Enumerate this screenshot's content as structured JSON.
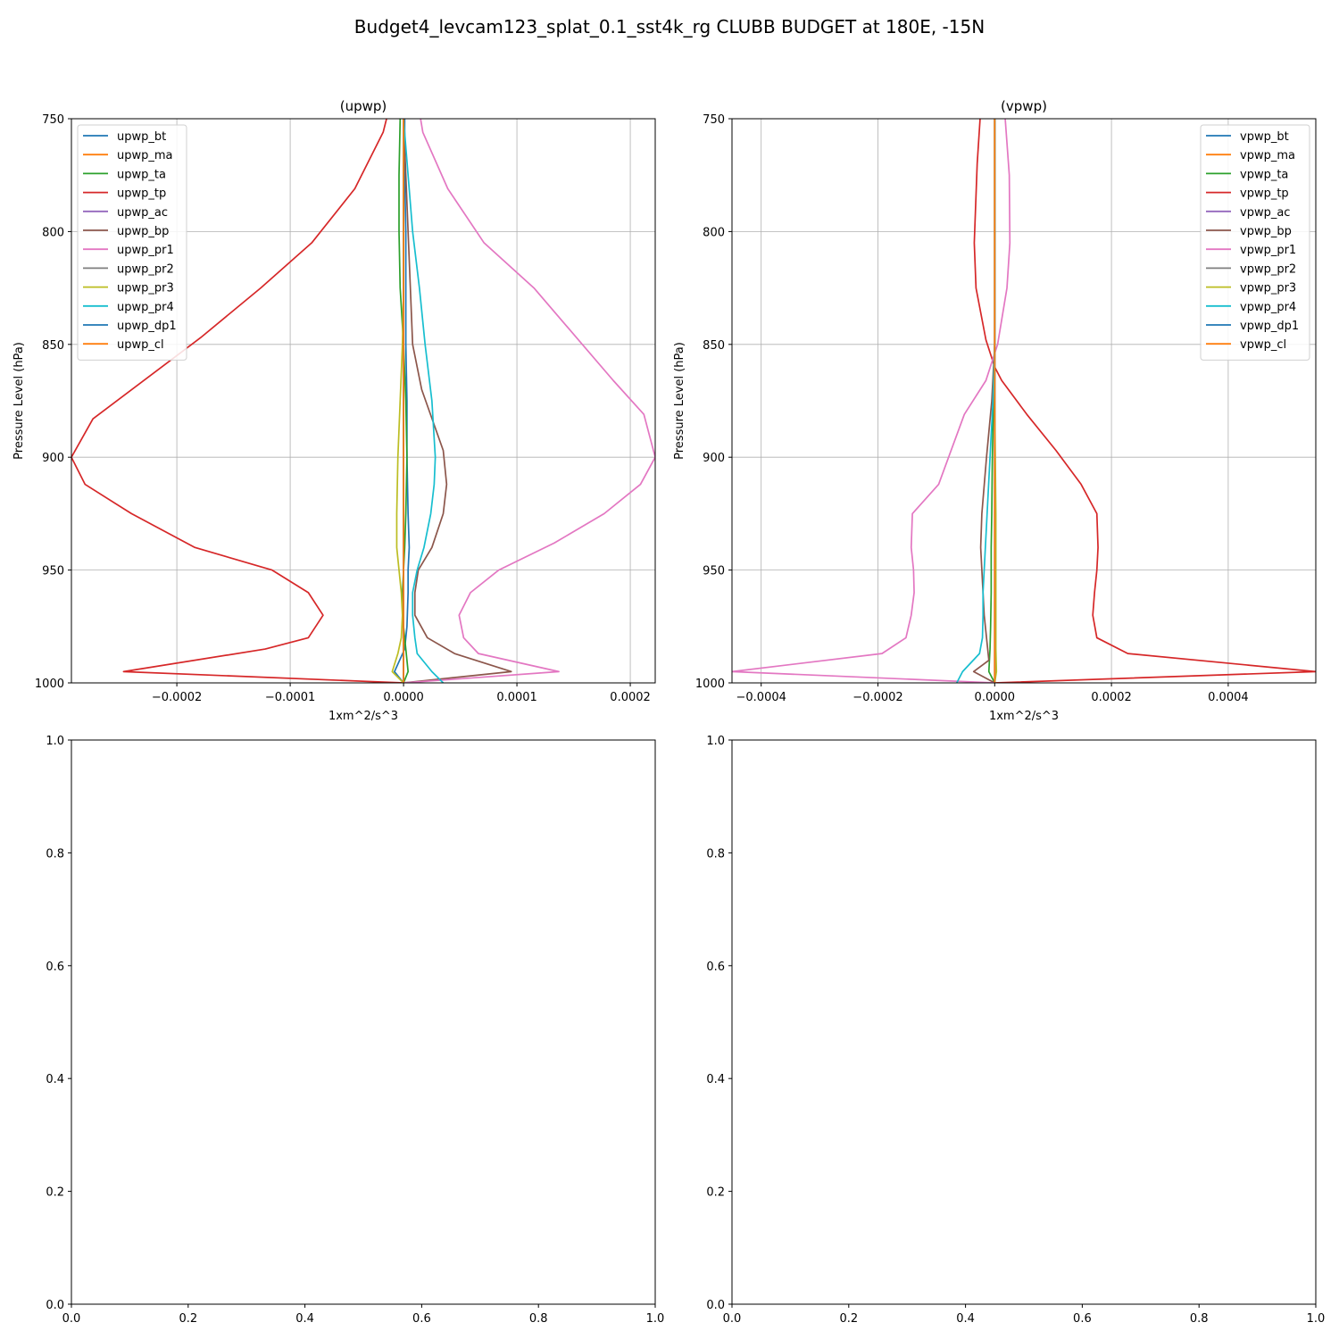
{
  "figure_title": "Budget4_levcam123_splat_0.1_sst4k_rg CLUBB BUDGET at 180E, -15N",
  "chart_data": [
    {
      "type": "line",
      "title": "(upwp)",
      "xlabel": "1xm^2/s^3",
      "ylabel": "Pressure Level (hPa)",
      "xlim": [
        -0.000293,
        0.000222
      ],
      "ylim": [
        1000,
        750
      ],
      "xticks": [
        -0.0002,
        -0.0001,
        0.0,
        0.0001,
        0.0002
      ],
      "xtick_labels": [
        "−0.0002",
        "−0.0001",
        "0.0000",
        "0.0001",
        "0.0002"
      ],
      "yticks": [
        750,
        800,
        850,
        900,
        950,
        1000
      ],
      "ytick_labels": [
        "750",
        "800",
        "850",
        "900",
        "950",
        "1000"
      ],
      "grid": true,
      "legend_position": "upper-left",
      "series": [
        {
          "name": "upwp_bt",
          "color": "#1f77b4",
          "x": [
            1e-06,
            1e-06,
            2e-06,
            2e-06,
            2e-06,
            3e-06,
            3e-06,
            4e-06,
            5e-06,
            4e-06,
            4e-06,
            3e-06,
            1e-06,
            -8e-06,
            0.0
          ],
          "y": [
            750,
            775,
            800,
            825,
            850,
            875,
            900,
            925,
            940,
            950,
            960,
            975,
            985,
            995,
            1000
          ]
        },
        {
          "name": "upwp_ma",
          "color": "#ff7f0e",
          "x": [
            0.0,
            0.0,
            0.0,
            0.0,
            0.0,
            0.0,
            0.0,
            0.0,
            0.0,
            0.0,
            0.0,
            0.0,
            0.0,
            0.0,
            0.0
          ],
          "y": [
            750,
            775,
            800,
            825,
            850,
            875,
            900,
            925,
            940,
            950,
            960,
            975,
            985,
            995,
            1000
          ]
        },
        {
          "name": "upwp_ta",
          "color": "#2ca02c",
          "x": [
            -3e-06,
            -4e-06,
            -4e-06,
            -3e-06,
            0.0,
            2e-06,
            3e-06,
            2e-06,
            1e-06,
            0.0,
            -1e-06,
            0.0,
            2e-06,
            4e-06,
            0.0
          ],
          "y": [
            750,
            775,
            800,
            825,
            850,
            875,
            900,
            925,
            940,
            950,
            960,
            975,
            985,
            995,
            1000
          ]
        },
        {
          "name": "upwp_tp",
          "color": "#d62728",
          "x": [
            -1.5e-05,
            -1.8e-05,
            -4.3e-05,
            -8.1e-05,
            -0.000126,
            -0.000179,
            -0.000274,
            -0.000293,
            -0.000281,
            -0.00024,
            -0.000184,
            -0.000116,
            -8.4e-05,
            -7.1e-05,
            -8.4e-05,
            -0.000122,
            -0.000247,
            0.0
          ],
          "y": [
            750,
            756,
            781,
            805,
            825,
            847,
            883,
            900,
            912,
            925,
            940,
            950,
            960,
            970,
            980,
            985,
            995,
            1000
          ]
        },
        {
          "name": "upwp_ac",
          "color": "#9467bd",
          "x": [
            0.0,
            0.0,
            0.0,
            0.0,
            0.0,
            0.0,
            0.0,
            0.0,
            0.0,
            0.0,
            0.0,
            0.0,
            0.0,
            0.0,
            0.0
          ],
          "y": [
            750,
            775,
            800,
            825,
            850,
            875,
            900,
            925,
            940,
            950,
            960,
            975,
            985,
            995,
            1000
          ]
        },
        {
          "name": "upwp_bp",
          "color": "#8c564b",
          "x": [
            0.0,
            2e-06,
            4e-06,
            6e-06,
            8e-06,
            1.6e-05,
            3.5e-05,
            3.8e-05,
            3.5e-05,
            2.5e-05,
            1.3e-05,
            1e-05,
            1e-05,
            2.1e-05,
            4.5e-05,
            9.5e-05,
            0.0
          ],
          "y": [
            750,
            775,
            800,
            825,
            850,
            870,
            897,
            912,
            925,
            940,
            950,
            960,
            970,
            980,
            987,
            995,
            1000
          ]
        },
        {
          "name": "upwp_pr1",
          "color": "#e377c2",
          "x": [
            1.5e-05,
            1.7e-05,
            3.9e-05,
            7.1e-05,
            0.000115,
            0.000185,
            0.000212,
            0.000222,
            0.000209,
            0.000177,
            0.000133,
            8.4e-05,
            5.9e-05,
            4.9e-05,
            5.3e-05,
            6.6e-05,
            0.000137,
            0.0
          ],
          "y": [
            750,
            756,
            781,
            805,
            825,
            866,
            881,
            900,
            912,
            925,
            938,
            950,
            960,
            970,
            980,
            987,
            995,
            1000
          ]
        },
        {
          "name": "upwp_pr2",
          "color": "#7f7f7f",
          "x": [
            0.0,
            0.0,
            0.0,
            0.0,
            0.0,
            0.0,
            0.0,
            0.0,
            0.0,
            0.0,
            0.0,
            0.0,
            0.0,
            0.0,
            0.0
          ],
          "y": [
            750,
            775,
            800,
            825,
            850,
            875,
            900,
            925,
            940,
            950,
            960,
            975,
            985,
            995,
            1000
          ]
        },
        {
          "name": "upwp_pr3",
          "color": "#bcbd22",
          "x": [
            0.0,
            0.0,
            0.0,
            0.0,
            -1e-06,
            -3e-06,
            -5e-06,
            -6e-06,
            -6e-06,
            -4e-06,
            -2e-06,
            -1e-06,
            -2e-06,
            -5e-06,
            -1e-05,
            0.0
          ],
          "y": [
            750,
            775,
            800,
            825,
            850,
            875,
            900,
            925,
            940,
            950,
            960,
            970,
            980,
            987,
            995,
            1000
          ]
        },
        {
          "name": "upwp_pr4",
          "color": "#17becf",
          "x": [
            0.0,
            4e-06,
            8e-06,
            1.4e-05,
            1.9e-05,
            2.5e-05,
            2.8e-05,
            2.7e-05,
            2.4e-05,
            1.8e-05,
            1.2e-05,
            8e-06,
            8e-06,
            1e-05,
            1.2e-05,
            2.5e-05,
            3.5e-05
          ],
          "y": [
            750,
            775,
            800,
            825,
            850,
            875,
            900,
            912,
            925,
            940,
            950,
            960,
            970,
            980,
            987,
            995,
            1000
          ]
        },
        {
          "name": "upwp_dp1",
          "color": "#1f77b4",
          "x": [
            0.0,
            0.0,
            0.0,
            0.0,
            0.0,
            0.0,
            0.0,
            0.0,
            0.0,
            0.0,
            0.0,
            0.0,
            0.0,
            0.0,
            0.0
          ],
          "y": [
            750,
            775,
            800,
            825,
            850,
            875,
            900,
            925,
            940,
            950,
            960,
            975,
            985,
            995,
            1000
          ]
        },
        {
          "name": "upwp_cl",
          "color": "#ff7f0e",
          "x": [
            0.0,
            0.0,
            0.0,
            0.0,
            0.0,
            0.0,
            0.0,
            0.0,
            0.0,
            0.0,
            0.0,
            0.0,
            0.0,
            0.0,
            0.0
          ],
          "y": [
            750,
            775,
            800,
            825,
            850,
            875,
            900,
            925,
            940,
            950,
            960,
            975,
            985,
            995,
            1000
          ]
        }
      ]
    },
    {
      "type": "line",
      "title": "(vpwp)",
      "xlabel": "1xm^2/s^3",
      "ylabel": "Pressure Level (hPa)",
      "xlim": [
        -0.00045,
        0.00055
      ],
      "ylim": [
        1000,
        750
      ],
      "xticks": [
        -0.0004,
        -0.0002,
        0.0,
        0.0002,
        0.0004
      ],
      "xtick_labels": [
        "−0.0004",
        "−0.0002",
        "0.0000",
        "0.0002",
        "0.0004"
      ],
      "yticks": [
        750,
        800,
        850,
        900,
        950,
        1000
      ],
      "ytick_labels": [
        "750",
        "800",
        "850",
        "900",
        "950",
        "1000"
      ],
      "grid": true,
      "legend_position": "upper-right",
      "series": [
        {
          "name": "vpwp_bt",
          "color": "#1f77b4",
          "x": [
            0.0,
            0.0,
            0.0,
            0.0,
            0.0,
            0.0,
            0.0,
            0.0,
            0.0,
            0.0,
            0.0,
            0.0,
            0.0,
            0.0,
            0.0
          ],
          "y": [
            750,
            775,
            800,
            825,
            850,
            875,
            900,
            925,
            940,
            950,
            960,
            975,
            985,
            995,
            1000
          ]
        },
        {
          "name": "vpwp_ma",
          "color": "#ff7f0e",
          "x": [
            0.0,
            0.0,
            0.0,
            0.0,
            0.0,
            0.0,
            0.0,
            0.0,
            0.0,
            0.0,
            0.0,
            0.0,
            0.0,
            0.0,
            0.0
          ],
          "y": [
            750,
            775,
            800,
            825,
            850,
            875,
            900,
            925,
            940,
            950,
            960,
            975,
            985,
            995,
            1000
          ]
        },
        {
          "name": "vpwp_ta",
          "color": "#2ca02c",
          "x": [
            0.0,
            0.0,
            0.0,
            0.0,
            0.0,
            -2e-06,
            -4e-06,
            -5e-06,
            -6e-06,
            -6e-06,
            -6e-06,
            -7e-06,
            -8e-06,
            -1e-05,
            0.0
          ],
          "y": [
            750,
            775,
            800,
            825,
            850,
            875,
            900,
            925,
            940,
            950,
            960,
            975,
            985,
            995,
            1000
          ]
        },
        {
          "name": "vpwp_tp",
          "color": "#d62728",
          "x": [
            -2.5e-05,
            -3e-05,
            -3.5e-05,
            -3.2e-05,
            -1.5e-05,
            0.0,
            1.2e-05,
            5.5e-05,
            0.000105,
            0.000148,
            0.000175,
            0.000177,
            0.000175,
            0.000171,
            0.000168,
            0.000175,
            0.000228,
            0.00055,
            0.0
          ],
          "y": [
            750,
            770,
            805,
            825,
            848,
            860,
            866,
            881,
            897,
            912,
            925,
            940,
            950,
            960,
            970,
            980,
            987,
            995,
            1000
          ]
        },
        {
          "name": "vpwp_ac",
          "color": "#9467bd",
          "x": [
            0.0,
            0.0,
            0.0,
            0.0,
            0.0,
            0.0,
            0.0,
            0.0,
            0.0,
            0.0,
            0.0,
            0.0,
            0.0,
            0.0,
            0.0
          ],
          "y": [
            750,
            775,
            800,
            825,
            850,
            875,
            900,
            925,
            940,
            950,
            960,
            975,
            985,
            995,
            1000
          ]
        },
        {
          "name": "vpwp_bp",
          "color": "#8c564b",
          "x": [
            0.0,
            0.0,
            0.0,
            0.0,
            0.0,
            -5e-06,
            -1.4e-05,
            -2.2e-05,
            -2.4e-05,
            -2.2e-05,
            -2e-05,
            -1.8e-05,
            -1.4e-05,
            -1.2e-05,
            -1e-05,
            -3.6e-05,
            0.0
          ],
          "y": [
            750,
            775,
            800,
            825,
            850,
            875,
            900,
            925,
            940,
            950,
            960,
            970,
            980,
            985,
            990,
            995,
            1000
          ]
        },
        {
          "name": "vpwp_pr1",
          "color": "#e377c2",
          "x": [
            1.8e-05,
            2.5e-05,
            2.6e-05,
            2.1e-05,
            5e-06,
            -1.5e-05,
            -5.2e-05,
            -9.6e-05,
            -0.000141,
            -0.000143,
            -0.000139,
            -0.000138,
            -0.000143,
            -0.000152,
            -0.000193,
            -0.00045,
            0.0
          ],
          "y": [
            750,
            775,
            805,
            825,
            850,
            866,
            881,
            912,
            925,
            940,
            950,
            960,
            970,
            980,
            987,
            995,
            1000
          ]
        },
        {
          "name": "vpwp_pr2",
          "color": "#7f7f7f",
          "x": [
            0.0,
            0.0,
            0.0,
            0.0,
            0.0,
            0.0,
            0.0,
            0.0,
            0.0,
            0.0,
            0.0,
            0.0,
            0.0,
            0.0,
            0.0
          ],
          "y": [
            750,
            775,
            800,
            825,
            850,
            875,
            900,
            925,
            940,
            950,
            960,
            975,
            985,
            995,
            1000
          ]
        },
        {
          "name": "vpwp_pr3",
          "color": "#bcbd22",
          "x": [
            0.0,
            0.0,
            0.0,
            0.0,
            0.0,
            0.0,
            1e-06,
            2e-06,
            2e-06,
            2e-06,
            2e-06,
            2e-06,
            2e-06,
            3e-06,
            0.0
          ],
          "y": [
            750,
            775,
            800,
            825,
            850,
            875,
            900,
            925,
            940,
            950,
            960,
            975,
            985,
            995,
            1000
          ]
        },
        {
          "name": "vpwp_pr4",
          "color": "#17becf",
          "x": [
            0.0,
            0.0,
            0.0,
            -3e-06,
            -8e-06,
            -1.3e-05,
            -1.6e-05,
            -1.8e-05,
            -2e-05,
            -2e-05,
            -2.1e-05,
            -2.6e-05,
            -5.5e-05,
            -6.5e-05
          ],
          "y": [
            750,
            800,
            850,
            875,
            900,
            925,
            940,
            950,
            960,
            970,
            980,
            987,
            995,
            1000
          ]
        },
        {
          "name": "vpwp_dp1",
          "color": "#1f77b4",
          "x": [
            0.0,
            0.0,
            0.0,
            0.0,
            0.0,
            0.0,
            0.0,
            0.0,
            0.0,
            0.0,
            0.0,
            0.0,
            0.0,
            0.0,
            0.0
          ],
          "y": [
            750,
            775,
            800,
            825,
            850,
            875,
            900,
            925,
            940,
            950,
            960,
            975,
            985,
            995,
            1000
          ]
        },
        {
          "name": "vpwp_cl",
          "color": "#ff7f0e",
          "x": [
            0.0,
            0.0,
            0.0,
            0.0,
            0.0,
            0.0,
            0.0,
            0.0,
            0.0,
            0.0,
            0.0,
            0.0,
            0.0,
            0.0,
            0.0
          ],
          "y": [
            750,
            775,
            800,
            825,
            850,
            875,
            900,
            925,
            940,
            950,
            960,
            975,
            985,
            995,
            1000
          ]
        }
      ]
    },
    {
      "type": "line",
      "title": "",
      "xlim": [
        0,
        1
      ],
      "ylim": [
        0,
        1
      ],
      "xticks": [
        0.0,
        0.2,
        0.4,
        0.6,
        0.8,
        1.0
      ],
      "xtick_labels": [
        "0.0",
        "0.2",
        "0.4",
        "0.6",
        "0.8",
        "1.0"
      ],
      "yticks": [
        0.0,
        0.2,
        0.4,
        0.6,
        0.8,
        1.0
      ],
      "ytick_labels": [
        "0.0",
        "0.2",
        "0.4",
        "0.6",
        "0.8",
        "1.0"
      ],
      "grid": false,
      "series": []
    },
    {
      "type": "line",
      "title": "",
      "xlim": [
        0,
        1
      ],
      "ylim": [
        0,
        1
      ],
      "xticks": [
        0.0,
        0.2,
        0.4,
        0.6,
        0.8,
        1.0
      ],
      "xtick_labels": [
        "0.0",
        "0.2",
        "0.4",
        "0.6",
        "0.8",
        "1.0"
      ],
      "yticks": [
        0.0,
        0.2,
        0.4,
        0.6,
        0.8,
        1.0
      ],
      "ytick_labels": [
        "0.0",
        "0.2",
        "0.4",
        "0.6",
        "0.8",
        "1.0"
      ],
      "grid": false,
      "series": []
    }
  ]
}
